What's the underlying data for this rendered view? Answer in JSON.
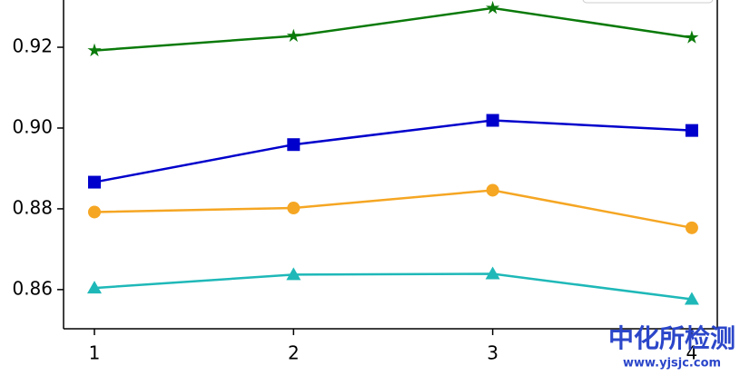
{
  "chart_data": {
    "type": "line",
    "x": [
      1,
      2,
      3,
      4
    ],
    "series": [
      {
        "color": "#0a7a0a",
        "marker": "star",
        "values": [
          0.9192,
          0.9228,
          0.9297,
          0.9224
        ]
      },
      {
        "color": "#0000cc",
        "marker": "square",
        "values": [
          0.8866,
          0.8959,
          0.9019,
          0.8994
        ]
      },
      {
        "color": "#f5a623",
        "marker": "circle",
        "values": [
          0.8792,
          0.8802,
          0.8846,
          0.8753
        ]
      },
      {
        "color": "#1fb8b8",
        "marker": "triangle",
        "values": [
          0.8604,
          0.8637,
          0.8639,
          0.8576
        ]
      }
    ],
    "xlim": [
      0.845,
      4.128
    ],
    "xticks": [
      1,
      2,
      3,
      4
    ],
    "ylim": [
      0.8503,
      0.9317
    ],
    "yticks": [
      0.86,
      0.88,
      {
        "value": 0.9,
        "label": "0.90"
      },
      0.92
    ],
    "grid": false
  },
  "watermark": {
    "title": "中化所检测",
    "url": "www.yjsjc.com"
  }
}
